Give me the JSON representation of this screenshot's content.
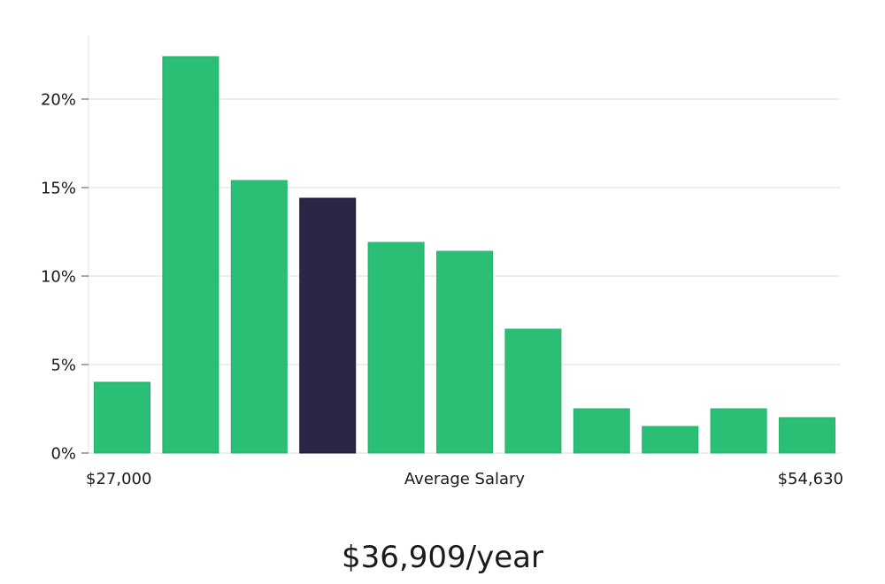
{
  "chart_data": {
    "type": "bar",
    "title": "",
    "xlabel": "Average Salary",
    "x_min_label": "$27,000",
    "x_max_label": "$54,630",
    "ylabel": "",
    "ylim": [
      0,
      23.5
    ],
    "yticks": [
      0,
      5,
      10,
      15,
      20
    ],
    "ytick_labels": [
      "0%",
      "5%",
      "10%",
      "15%",
      "20%"
    ],
    "grid": true,
    "values": [
      4.0,
      22.4,
      15.4,
      14.4,
      11.9,
      11.4,
      7.0,
      2.5,
      1.5,
      2.5,
      2.0
    ],
    "highlight_index": 3,
    "bar_color": "#2bbf76",
    "bar_stroke": "#25b06c",
    "highlight_color": "#2b2546",
    "highlight_stroke": "#1f1a38"
  },
  "summary": {
    "salary": "$36,909/year"
  }
}
